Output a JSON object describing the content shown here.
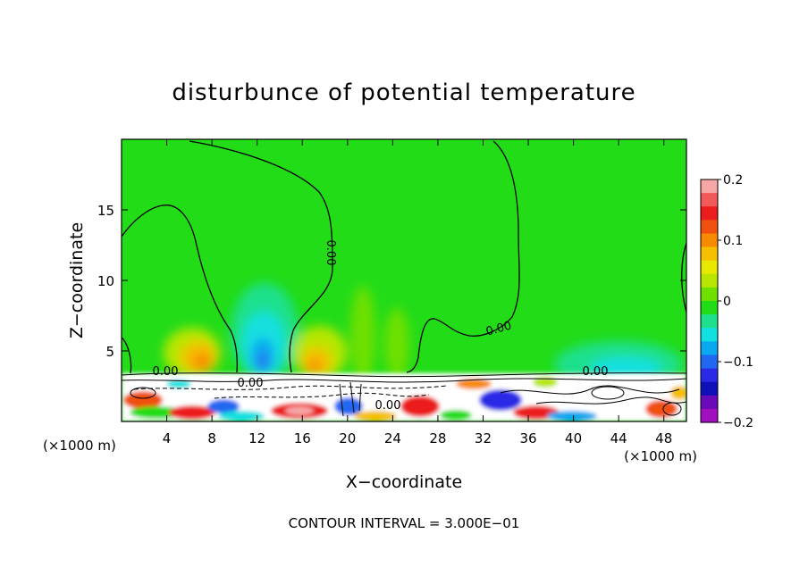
{
  "chart_data": {
    "type": "heatmap",
    "title": "disturbunce of potential temperature",
    "xlabel": "X−coordinate",
    "ylabel": "Z−coordinate",
    "x_unit_label_left": "(×1000 m)",
    "x_unit_label_right": "(×1000 m)",
    "footer": "CONTOUR INTERVAL = 3.000E−01",
    "xlim": [
      0,
      50
    ],
    "ylim": [
      0,
      20
    ],
    "x_ticks": [
      4,
      8,
      12,
      16,
      20,
      24,
      28,
      32,
      36,
      40,
      44,
      48
    ],
    "x_tick_labels": [
      "4",
      "8",
      "12",
      "16",
      "20",
      "24",
      "28",
      "32",
      "36",
      "40",
      "44",
      "48"
    ],
    "y_ticks": [
      5,
      10,
      15
    ],
    "y_tick_labels": [
      "5",
      "10",
      "15"
    ],
    "colorbar": {
      "range": [
        -0.2,
        0.2
      ],
      "tick_values": [
        0.2,
        0.1,
        0,
        -0.1,
        -0.2
      ],
      "tick_labels": [
        "0.2",
        "0.1",
        "0",
        "−0.1",
        "−0.2"
      ],
      "colors": [
        "#f7a6a6",
        "#f25a5a",
        "#ec1c1c",
        "#f05010",
        "#f78a00",
        "#f5c000",
        "#e8e800",
        "#b8e600",
        "#6ee000",
        "#22dc18",
        "#1ee08c",
        "#12e0e0",
        "#0aa8f0",
        "#2068f0",
        "#2a2ae6",
        "#1010b8",
        "#6a0ab8",
        "#a010c0"
      ]
    },
    "contour_labels": [
      "0.00",
      "0.00",
      "0.00",
      "0.00",
      "0.00",
      "0.00"
    ],
    "background_value": 0
  }
}
